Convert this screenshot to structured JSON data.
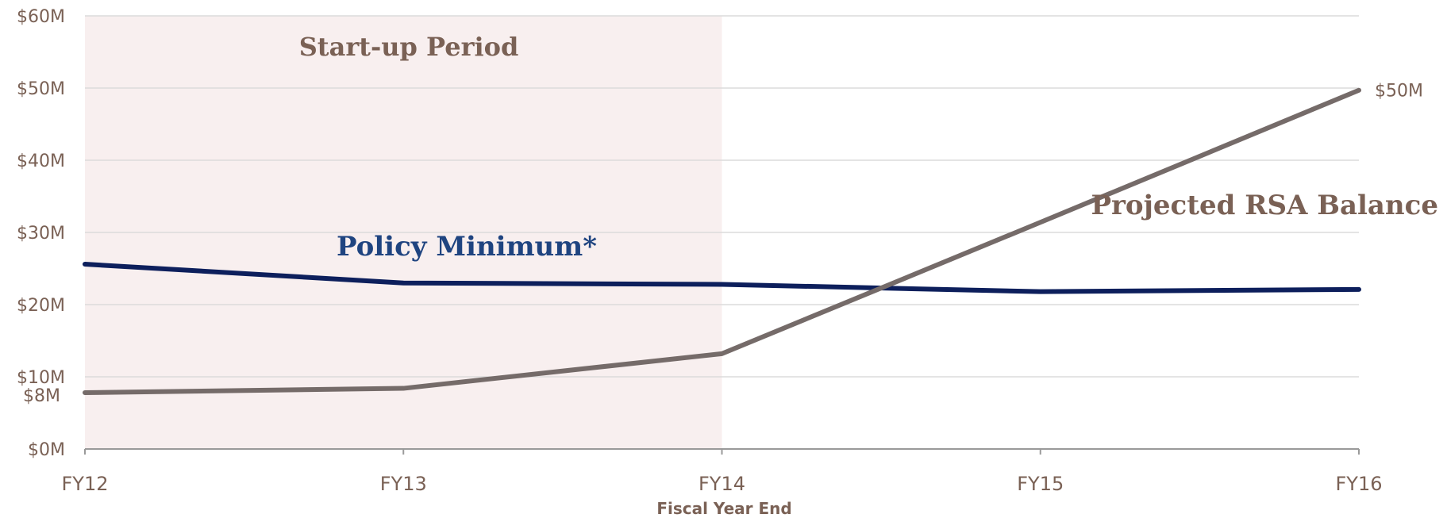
{
  "chart_data": {
    "type": "line",
    "categories": [
      "FY12",
      "FY13",
      "FY14",
      "FY15",
      "FY16"
    ],
    "xlabel": "Fiscal Year End",
    "ylabel": "",
    "ylim": [
      0,
      60
    ],
    "yticks": [
      0,
      10,
      20,
      30,
      40,
      50,
      60
    ],
    "ytick_labels": [
      "$0M",
      "$10M",
      "$20M",
      "$30M",
      "$40M",
      "$50M",
      "$60M"
    ],
    "extra_ytick": {
      "value": 8,
      "label": "$8M"
    },
    "grid": true,
    "shaded_region": {
      "from": "FY12",
      "to": "FY14",
      "label": "Start-up Period"
    },
    "series": [
      {
        "name": "Policy Minimum*",
        "values": [
          25.6,
          23.0,
          22.8,
          21.8,
          22.1
        ]
      },
      {
        "name": "Projected RSA Balance",
        "values": [
          7.8,
          8.4,
          13.2,
          31.4,
          49.7
        ],
        "end_label": "$50M"
      }
    ],
    "colors": {
      "policy_line": "#0d1f5c",
      "policy_label": "#1f4480",
      "rsa_line": "#756b69",
      "rsa_label": "#7a6155",
      "shade": "#f8efef",
      "grid": "#dcdcdc",
      "axis": "#9a9a9a",
      "text": "#7a6155"
    }
  }
}
